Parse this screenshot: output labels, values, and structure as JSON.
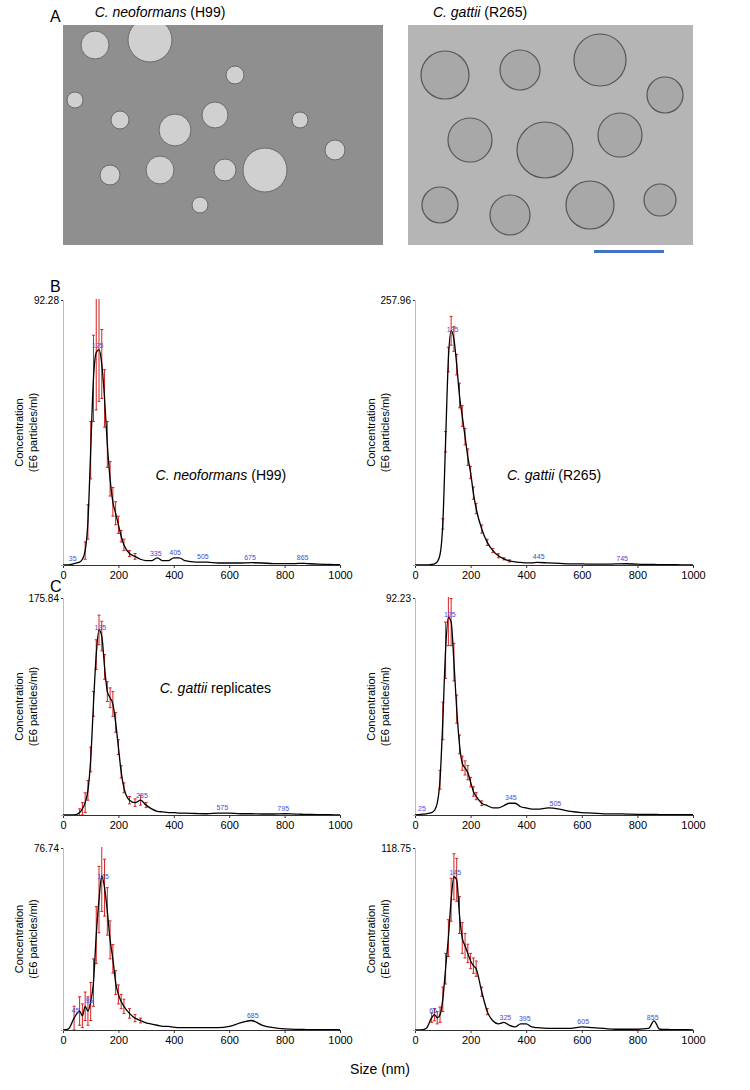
{
  "figure": {
    "panel_labels": [
      "A",
      "B",
      "C"
    ],
    "images": [
      {
        "caption": "C. neoformans (H99)"
      },
      {
        "caption": "C. gattii (R265)"
      }
    ],
    "x_label": "Size (nm)"
  },
  "chart_data": [
    {
      "type": "line",
      "title": "C. neoformans (H99)",
      "y_label": [
        "Concentration",
        "(E6 particles/ml)"
      ],
      "x": [
        0,
        20,
        40,
        60,
        70,
        80,
        90,
        100,
        110,
        120,
        130,
        140,
        150,
        160,
        170,
        180,
        190,
        200,
        210,
        220,
        240,
        260,
        280,
        300,
        320,
        340,
        360,
        380,
        400,
        420,
        440,
        480,
        520,
        560,
        600,
        640,
        680,
        720,
        760,
        800,
        840,
        860,
        880,
        920,
        960,
        1000
      ],
      "values": [
        0,
        0,
        0.5,
        1,
        2,
        5,
        15,
        40,
        65,
        74,
        75,
        70,
        58,
        42,
        30,
        22,
        18,
        14,
        10,
        7,
        4,
        3,
        2,
        1.5,
        1.5,
        2.5,
        1.5,
        1.5,
        2.5,
        2.5,
        1.5,
        1,
        1,
        0.7,
        0.7,
        0.7,
        0.8,
        0.7,
        0.5,
        0.5,
        0.5,
        0.6,
        0.5,
        0.3,
        0.2,
        0.1
      ],
      "errors": [
        null,
        null,
        null,
        null,
        null,
        3,
        6,
        10,
        15,
        20,
        18,
        12,
        10,
        8,
        6,
        5,
        4,
        3,
        2,
        2,
        1,
        1,
        null,
        null,
        null,
        null,
        null,
        null,
        null,
        null,
        null,
        null,
        null,
        null,
        null,
        null,
        null,
        null,
        null,
        null,
        null,
        null,
        null,
        null,
        null,
        null
      ],
      "peak_labels": [
        35,
        125,
        335,
        405,
        505,
        675,
        865
      ],
      "xlim": [
        0,
        1000
      ],
      "xticks": [
        0,
        200,
        400,
        600,
        800,
        1000
      ],
      "ylim": [
        0,
        92.28
      ],
      "yticks": [
        92.28
      ],
      "color": "#000000"
    },
    {
      "type": "line",
      "title": "C. gattii (R265)",
      "y_label": [
        "Concentration",
        "(E6 particles/ml)"
      ],
      "x": [
        0,
        20,
        40,
        60,
        70,
        80,
        90,
        100,
        110,
        120,
        130,
        140,
        150,
        160,
        170,
        180,
        190,
        200,
        210,
        220,
        240,
        260,
        280,
        300,
        320,
        340,
        360,
        380,
        400,
        420,
        440,
        480,
        520,
        560,
        600,
        640,
        680,
        720,
        760,
        800,
        840,
        860,
        880,
        920,
        960,
        1000
      ],
      "values": [
        0,
        0,
        0,
        0.5,
        1,
        3,
        10,
        40,
        120,
        200,
        228,
        220,
        195,
        165,
        145,
        125,
        105,
        90,
        70,
        55,
        35,
        22,
        14,
        9,
        6,
        4,
        3,
        2.5,
        2,
        2,
        2.5,
        2,
        1.5,
        1,
        1,
        0.8,
        0.8,
        1,
        1.2,
        0.8,
        0.5,
        0.5,
        0.4,
        0.3,
        0.2,
        0.1
      ],
      "errors": [
        null,
        null,
        null,
        null,
        null,
        null,
        null,
        5,
        10,
        12,
        14,
        12,
        10,
        12,
        10,
        8,
        8,
        6,
        6,
        5,
        4,
        3,
        2,
        2,
        1,
        1,
        null,
        null,
        null,
        null,
        null,
        null,
        null,
        null,
        null,
        null,
        null,
        null,
        null,
        null,
        null,
        null,
        null,
        null,
        null,
        null
      ],
      "peak_labels": [
        135,
        445,
        745
      ],
      "xlim": [
        0,
        1000
      ],
      "xticks": [
        0,
        200,
        400,
        600,
        800,
        1000
      ],
      "ylim": [
        0,
        257.96
      ],
      "yticks": [
        257.96
      ],
      "color": "#000000"
    },
    {
      "type": "line",
      "title": "C. gattii replicates",
      "y_label": [
        "Concentration",
        "(E6 particles/ml)"
      ],
      "x": [
        0,
        20,
        40,
        60,
        70,
        80,
        90,
        100,
        110,
        120,
        130,
        140,
        150,
        160,
        170,
        180,
        190,
        200,
        210,
        220,
        240,
        260,
        280,
        300,
        320,
        340,
        360,
        380,
        400,
        420,
        440,
        480,
        520,
        560,
        600,
        640,
        680,
        720,
        760,
        800,
        840,
        860,
        880,
        920,
        960,
        1000
      ],
      "values": [
        0,
        0,
        0,
        2,
        5,
        10,
        20,
        45,
        90,
        130,
        150,
        145,
        120,
        100,
        95,
        90,
        75,
        55,
        35,
        22,
        12,
        10,
        12,
        8,
        5,
        3,
        2.5,
        2,
        2,
        1.5,
        1.5,
        1.2,
        1,
        1.5,
        1.5,
        1,
        1,
        0.8,
        0.8,
        1,
        0.7,
        0.6,
        0.5,
        0.3,
        0.2,
        0.1
      ],
      "errors": [
        null,
        null,
        null,
        3,
        5,
        8,
        8,
        10,
        10,
        12,
        12,
        12,
        10,
        8,
        8,
        10,
        8,
        6,
        5,
        4,
        3,
        3,
        4,
        2,
        null,
        null,
        null,
        null,
        null,
        null,
        null,
        null,
        null,
        null,
        null,
        null,
        null,
        null,
        null,
        null,
        null,
        null,
        null,
        null,
        null,
        null
      ],
      "peak_labels": [
        135,
        285,
        575,
        795
      ],
      "xlim": [
        0,
        1000
      ],
      "xticks": [
        0,
        200,
        400,
        600,
        800,
        1000
      ],
      "ylim": [
        0,
        175.84
      ],
      "yticks": [
        175.84
      ],
      "color": "#000000"
    },
    {
      "type": "line",
      "y_label": [
        "Concentration",
        "(E6 particles/ml)"
      ],
      "x": [
        0,
        20,
        40,
        60,
        70,
        80,
        90,
        100,
        110,
        120,
        130,
        140,
        150,
        160,
        170,
        180,
        190,
        200,
        210,
        220,
        240,
        260,
        280,
        300,
        320,
        340,
        360,
        380,
        400,
        420,
        440,
        480,
        520,
        560,
        600,
        640,
        680,
        720,
        760,
        800,
        840,
        860,
        880,
        920,
        960,
        1000
      ],
      "values": [
        0,
        0.3,
        0.5,
        1,
        2,
        5,
        15,
        40,
        70,
        84,
        82,
        65,
        45,
        30,
        22,
        20,
        18,
        14,
        10,
        8,
        5,
        4,
        3,
        3,
        4,
        5,
        5,
        3.5,
        3,
        2.5,
        2.5,
        3,
        2.5,
        1.5,
        1,
        0.8,
        0.5,
        0.5,
        0.4,
        0.3,
        0.3,
        0.3,
        0.2,
        0.2,
        0.1,
        0.1
      ],
      "errors": [
        null,
        null,
        null,
        null,
        null,
        null,
        4,
        8,
        12,
        12,
        10,
        8,
        6,
        4,
        3,
        3,
        3,
        2,
        2,
        1.5,
        1,
        null,
        null,
        null,
        null,
        null,
        null,
        null,
        null,
        null,
        null,
        null,
        null,
        null,
        null,
        null,
        null,
        null,
        null,
        null,
        null,
        null,
        null,
        null,
        null,
        null
      ],
      "peak_labels": [
        25,
        125,
        345,
        505
      ],
      "xlim": [
        0,
        1000
      ],
      "xticks": [
        0,
        200,
        400,
        600,
        800,
        1000
      ],
      "ylim": [
        0,
        92.23
      ],
      "yticks": [
        92.23
      ],
      "color": "#000000"
    },
    {
      "type": "line",
      "y_label": [
        "Concentration",
        "(E6 particles/ml)"
      ],
      "x": [
        0,
        20,
        40,
        60,
        70,
        80,
        90,
        100,
        110,
        120,
        130,
        140,
        150,
        160,
        170,
        180,
        190,
        200,
        210,
        220,
        240,
        260,
        280,
        300,
        320,
        340,
        360,
        380,
        400,
        420,
        440,
        480,
        520,
        560,
        600,
        640,
        680,
        720,
        760,
        800,
        840,
        860,
        880,
        920,
        960,
        1000
      ],
      "values": [
        0,
        0.5,
        5,
        8,
        6,
        10,
        8,
        12,
        20,
        40,
        55,
        65,
        60,
        50,
        38,
        30,
        20,
        15,
        12,
        10,
        7,
        5,
        4,
        3,
        2.5,
        2,
        1.5,
        1.5,
        1.2,
        1,
        1,
        1,
        1,
        1,
        1.5,
        3,
        4,
        2,
        1,
        0.5,
        0.3,
        0.3,
        0.2,
        0.2,
        0.1,
        0.1
      ],
      "errors": [
        null,
        null,
        5,
        6,
        5,
        6,
        6,
        8,
        10,
        12,
        14,
        15,
        12,
        10,
        8,
        6,
        5,
        4,
        3,
        3,
        2,
        1.5,
        1,
        null,
        null,
        null,
        null,
        null,
        null,
        null,
        null,
        null,
        null,
        null,
        null,
        null,
        null,
        null,
        null,
        null,
        null,
        null,
        null,
        null,
        null,
        null
      ],
      "peak_labels": [
        45,
        95,
        145,
        685
      ],
      "xlim": [
        0,
        1000
      ],
      "xticks": [
        0,
        200,
        400,
        600,
        800,
        1000
      ],
      "ylim": [
        0,
        76.74
      ],
      "yticks": [
        76.74
      ],
      "color": "#000000"
    },
    {
      "type": "line",
      "y_label": [
        "Concentration",
        "(E6 particles/ml)"
      ],
      "x": [
        0,
        20,
        40,
        60,
        70,
        80,
        90,
        100,
        110,
        120,
        130,
        140,
        150,
        160,
        170,
        180,
        190,
        200,
        210,
        220,
        240,
        260,
        280,
        300,
        320,
        340,
        360,
        380,
        400,
        420,
        440,
        480,
        520,
        560,
        600,
        640,
        680,
        720,
        760,
        800,
        840,
        860,
        880,
        920,
        960,
        1000
      ],
      "values": [
        0,
        0,
        1,
        8,
        10,
        8,
        10,
        20,
        40,
        60,
        85,
        100,
        98,
        75,
        60,
        55,
        50,
        45,
        42,
        40,
        25,
        12,
        6,
        4,
        5,
        3,
        2,
        4,
        4,
        2,
        1.5,
        1,
        1,
        1,
        2,
        1.5,
        1,
        0.5,
        0.5,
        0.5,
        1,
        6,
        0.5,
        0.3,
        0.2,
        0.1
      ],
      "errors": [
        null,
        null,
        null,
        3,
        4,
        4,
        5,
        8,
        10,
        12,
        14,
        15,
        14,
        12,
        10,
        8,
        6,
        5,
        5,
        5,
        3,
        2,
        null,
        null,
        null,
        null,
        null,
        null,
        null,
        null,
        null,
        null,
        null,
        null,
        null,
        null,
        null,
        null,
        null,
        null,
        null,
        null,
        null,
        null,
        null,
        null
      ],
      "peak_labels": [
        65,
        145,
        325,
        395,
        605,
        855
      ],
      "xlim": [
        0,
        1000
      ],
      "xticks": [
        0,
        200,
        400,
        600,
        800,
        1000
      ],
      "ylim": [
        0,
        118.75
      ],
      "yticks": [
        118.75
      ],
      "color": "#000000"
    }
  ]
}
